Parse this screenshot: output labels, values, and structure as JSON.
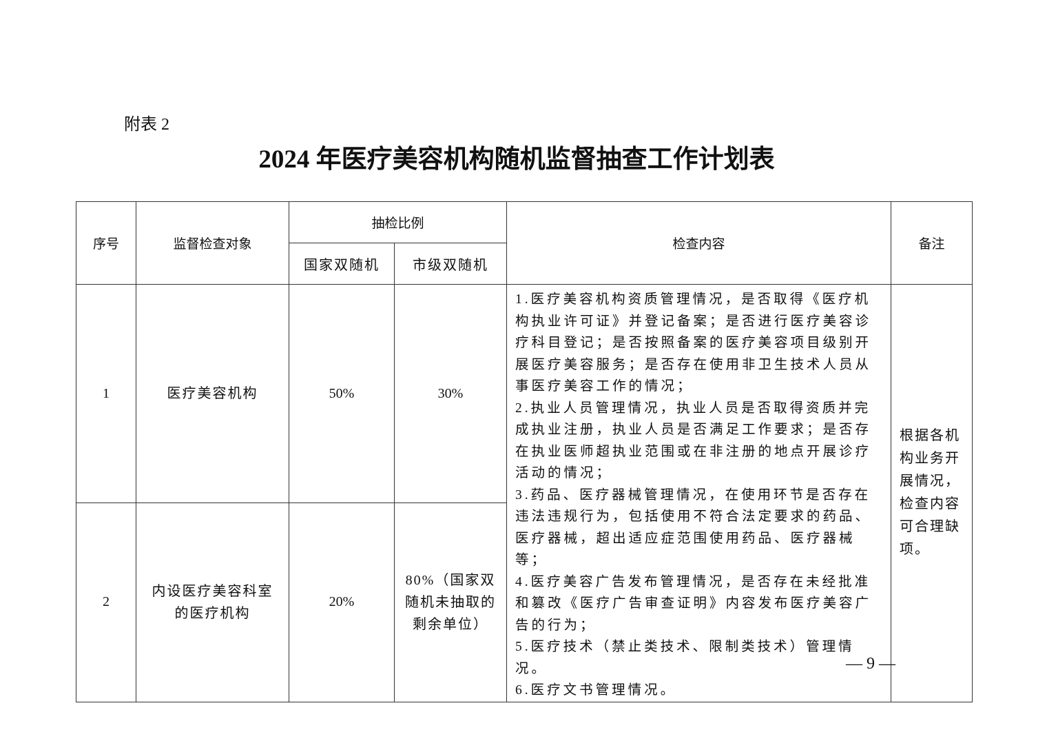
{
  "appendix_label": "附表 2",
  "title": "2024 年医疗美容机构随机监督抽查工作计划表",
  "table": {
    "headers": {
      "index": "序号",
      "object": "监督检查对象",
      "ratio": "抽检比例",
      "national": "国家双随机",
      "municipal": "市级双随机",
      "content": "检查内容",
      "remark": "备注"
    },
    "rows": [
      {
        "index": "1",
        "object": "医疗美容机构",
        "national": "50%",
        "municipal": "30%"
      },
      {
        "index": "2",
        "object": "内设医疗美容科室的医疗机构",
        "national": "20%",
        "municipal": "80%（国家双随机未抽取的剩余单位）"
      }
    ],
    "content_items": [
      "1.医疗美容机构资质管理情况，是否取得《医疗机构执业许可证》并登记备案；是否进行医疗美容诊疗科目登记；是否按照备案的医疗美容项目级别开展医疗美容服务；是否存在使用非卫生技术人员从事医疗美容工作的情况；",
      "2.执业人员管理情况，执业人员是否取得资质并完成执业注册，执业人员是否满足工作要求；是否存在执业医师超执业范围或在非注册的地点开展诊疗活动的情况；",
      "3.药品、医疗器械管理情况，在使用环节是否存在违法违规行为，包括使用不符合法定要求的药品、医疗器械，超出适应症范围使用药品、医疗器械等；",
      "4.医疗美容广告发布管理情况，是否存在未经批准和篡改《医疗广告审查证明》内容发布医疗美容广告的行为；",
      "5.医疗技术（禁止类技术、限制类技术）管理情况。",
      "6.医疗文书管理情况。"
    ],
    "remark": "根据各机构业务开展情况，检查内容可合理缺项。"
  },
  "page_number": "— 9 —"
}
